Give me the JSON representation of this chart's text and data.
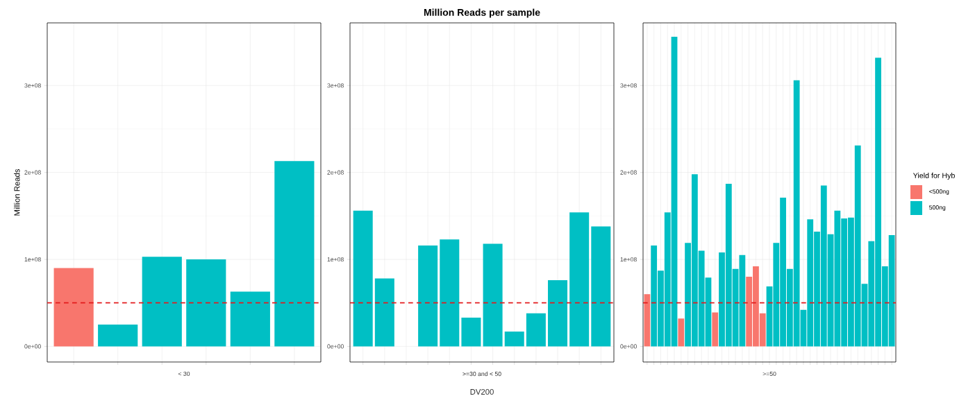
{
  "chart_data": [
    {
      "type": "bar",
      "ylabel": "Million Reads",
      "subtitle": "< 30",
      "categories": [
        null,
        null,
        null,
        null,
        null,
        null
      ],
      "series": [
        {
          "color": "#f8766d",
          "values": [
            90000000,
            null,
            null,
            null,
            null,
            null
          ]
        },
        {
          "color": "#00bfc4",
          "values": [
            null,
            25000000,
            103000000,
            100000000,
            63000000,
            213000000
          ]
        }
      ],
      "ylim": [
        -18000000,
        372000000
      ],
      "yticks": [
        {
          "value": 0,
          "label": "0e+00"
        },
        {
          "value": 100000000,
          "label": "1e+08"
        },
        {
          "value": 200000000,
          "label": "2e+08"
        },
        {
          "value": 300000000,
          "label": "3e+08"
        }
      ],
      "tick_labels": "y",
      "grid": true,
      "ref_lines": [
        {
          "axis": "y",
          "value": 50000000,
          "color": "#e31a1c",
          "line_style": "dashed"
        }
      ]
    },
    {
      "type": "bar",
      "title": "Million Reads per sample",
      "xlabel": "DV200",
      "subtitle": ">=30 and < 50",
      "categories": [
        null,
        null,
        null,
        null,
        null,
        null,
        null,
        null,
        null,
        null,
        null,
        null
      ],
      "series": [
        {
          "color": "#00bfc4",
          "values": [
            156000000,
            78000000,
            null,
            116000000,
            123000000,
            33000000,
            118000000,
            17000000,
            38000000,
            76000000,
            154000000,
            138000000
          ]
        }
      ],
      "ylim": [
        -18000000,
        372000000
      ],
      "yticks": [
        {
          "value": 0,
          "label": "0e+00"
        },
        {
          "value": 100000000,
          "label": "1e+08"
        },
        {
          "value": 200000000,
          "label": "2e+08"
        },
        {
          "value": 300000000,
          "label": "3e+08"
        }
      ],
      "tick_labels": "y",
      "grid": true,
      "ref_lines": [
        {
          "axis": "y",
          "value": 50000000,
          "color": "#e31a1c",
          "line_style": "dashed"
        }
      ]
    },
    {
      "type": "bar",
      "subtitle": ">=50",
      "legend_title": "Yield for Hyb",
      "legend": "right",
      "categories": [
        null,
        null,
        null,
        null,
        null,
        null,
        null,
        null,
        null,
        null,
        null,
        null,
        null,
        null,
        null,
        null,
        null,
        null,
        null,
        null,
        null,
        null,
        null,
        null,
        null,
        null,
        null,
        null,
        null,
        null,
        null,
        null,
        null,
        null,
        null,
        null,
        null
      ],
      "series": [
        {
          "name": "<500ng",
          "color": "#f8766d",
          "values": [
            60000000,
            null,
            null,
            null,
            null,
            32000000,
            null,
            null,
            null,
            null,
            39000000,
            null,
            null,
            null,
            null,
            80000000,
            92000000,
            38000000,
            null,
            null,
            null,
            null,
            null,
            null,
            null,
            null,
            null,
            null,
            null,
            null,
            null,
            null,
            null,
            null,
            null,
            null,
            null
          ]
        },
        {
          "name": "500ng",
          "color": "#00bfc4",
          "values": [
            null,
            116000000,
            87000000,
            154000000,
            356000000,
            null,
            119000000,
            198000000,
            110000000,
            79000000,
            null,
            108000000,
            187000000,
            89000000,
            105000000,
            null,
            null,
            null,
            69000000,
            119000000,
            171000000,
            89000000,
            306000000,
            42000000,
            146000000,
            132000000,
            185000000,
            129000000,
            156000000,
            147000000,
            148000000,
            231000000,
            72000000,
            121000000,
            332000000,
            92000000,
            128000000
          ]
        }
      ],
      "ylim": [
        -18000000,
        372000000
      ],
      "yticks": [
        {
          "value": 0,
          "label": "0e+00"
        },
        {
          "value": 100000000,
          "label": "1e+08"
        },
        {
          "value": 200000000,
          "label": "2e+08"
        },
        {
          "value": 300000000,
          "label": "3e+08"
        }
      ],
      "tick_labels": "y",
      "grid": true,
      "ref_lines": [
        {
          "axis": "y",
          "value": 50000000,
          "color": "#e31a1c",
          "line_style": "dashed"
        }
      ]
    }
  ]
}
